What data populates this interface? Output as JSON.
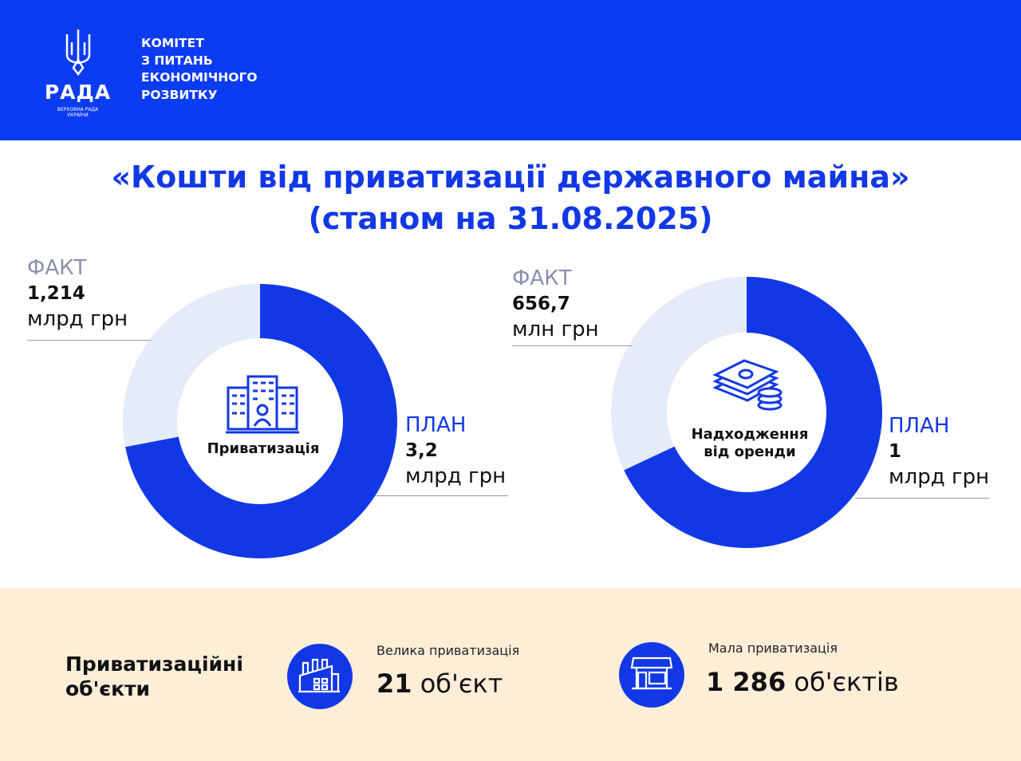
{
  "header": {
    "logo_word": "РАДА",
    "logo_sub_1": "ВЕРХОВНА РАДА",
    "logo_sub_2": "УКРАЇНИ",
    "committee": [
      "КОМІТЕТ",
      "З ПИТАНЬ",
      "ЕКОНОМІЧНОГО",
      "РОЗВИТКУ"
    ]
  },
  "title": {
    "line1": "«Кошти від приватизації державного майна»",
    "line2": "(станом на 31.08.2025)"
  },
  "donuts": [
    {
      "center_label": "Приватизація",
      "icon": "building-icon",
      "fact": {
        "head": "ФАКТ",
        "value": "1,214",
        "unit": "млрд грн"
      },
      "plan": {
        "head": "ПЛАН",
        "value": "3,2",
        "unit": "млрд грн"
      }
    },
    {
      "center_label_1": "Надходження",
      "center_label_2": "від оренди",
      "icon": "money-icon",
      "fact": {
        "head": "ФАКТ",
        "value": "656,7",
        "unit": "млн грн"
      },
      "plan": {
        "head": "ПЛАН",
        "value": "1",
        "unit": "млрд грн"
      }
    }
  ],
  "colors": {
    "primary": "#1238e6",
    "light": "#e6ebfa",
    "bottom_bg": "#fdeed8"
  },
  "objects": {
    "title_1": "Приватизаційні",
    "title_2": "об'єкти",
    "large": {
      "caption": "Велика приватизація",
      "count": "21",
      "unit": "об'єкт",
      "icon": "factory-icon"
    },
    "small": {
      "caption": "Мала  приватизація",
      "count": "1 286",
      "unit": "об'єктів",
      "icon": "shop-icon"
    }
  }
}
